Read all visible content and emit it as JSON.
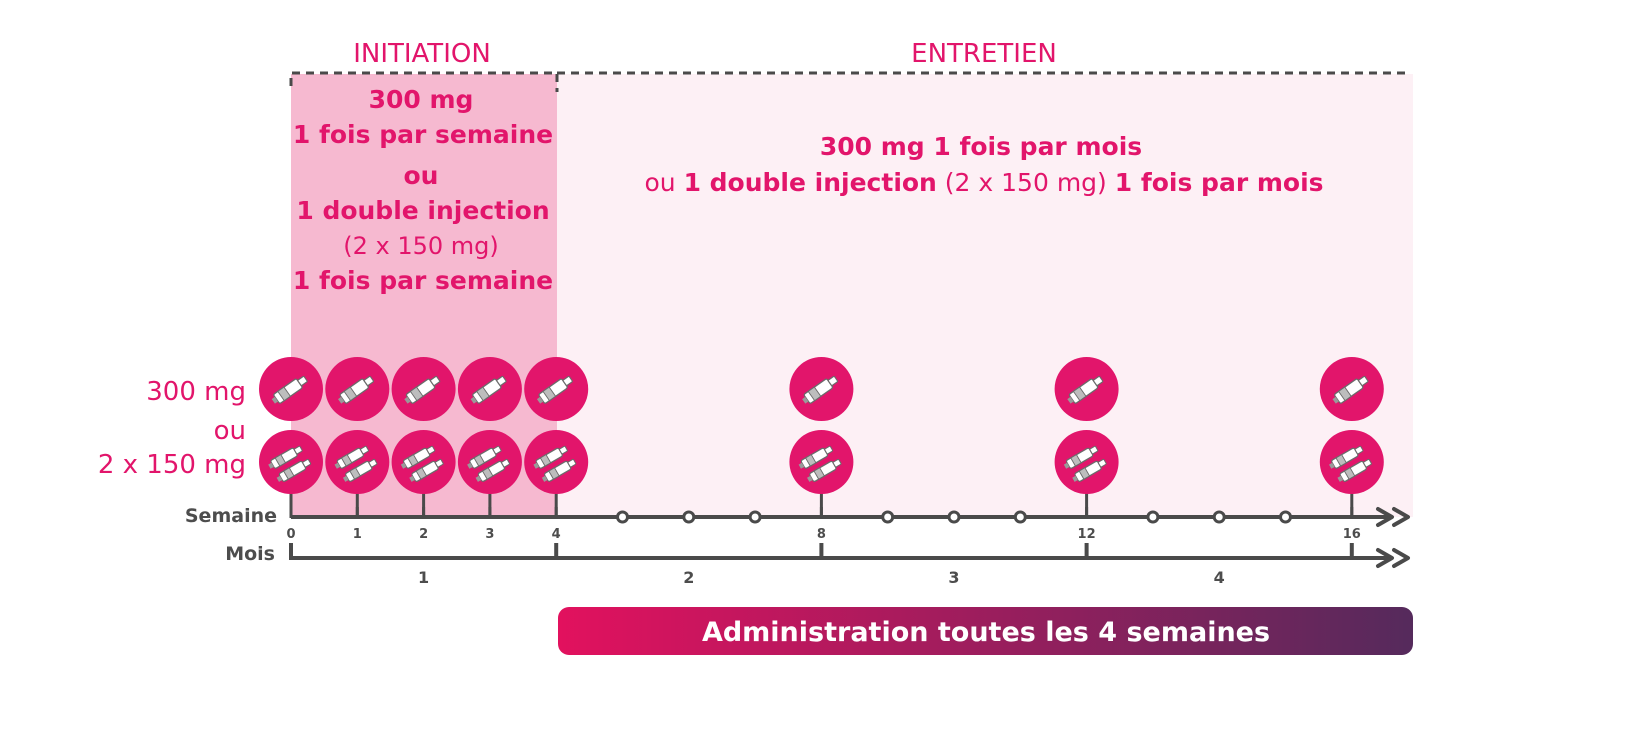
{
  "colors": {
    "accent": "#e2156b",
    "initiation_bg": "#f6b9d0",
    "entretien_bg": "#fdf0f5",
    "axis": "#4a4a4a",
    "axis_label": "#4d4d4d",
    "bar_start": "#e2115e",
    "bar_end": "#552a5c"
  },
  "phases": {
    "initiation": {
      "title": "INITIATION",
      "dose_line": "300 mg",
      "freq_line": "1 fois par semaine",
      "or_line": "ou",
      "double_line": "1 double injection",
      "double_detail": "(2 x 150 mg)",
      "freq_line_2": "1 fois par semaine"
    },
    "entretien": {
      "title": "ENTRETIEN",
      "line1": "300 mg 1 fois par mois",
      "line2_part1": "ou ",
      "line2_part2": "1 double injection",
      "line2_part3": " (2 x 150 mg) ",
      "line2_part4": "1 fois par mois"
    }
  },
  "legend": {
    "single_dose": "300 mg",
    "or": "ou",
    "double_dose": "2 x 150 mg"
  },
  "icons": {
    "single": "single-syringe-icon",
    "double": "double-syringe-icon"
  },
  "timeline": {
    "week_label": "Semaine",
    "month_label": "Mois",
    "injection_weeks": [
      0,
      1,
      2,
      3,
      4,
      8,
      12,
      16
    ],
    "labeled_weeks": [
      "0",
      "1",
      "2",
      "3",
      "4",
      "8",
      "12",
      "16"
    ],
    "minor_weeks": [
      5,
      6,
      7,
      9,
      10,
      11,
      13,
      14,
      15
    ],
    "months": [
      "1",
      "2",
      "3",
      "4"
    ]
  },
  "banner": {
    "text": "Administration toutes les 4 semaines"
  }
}
